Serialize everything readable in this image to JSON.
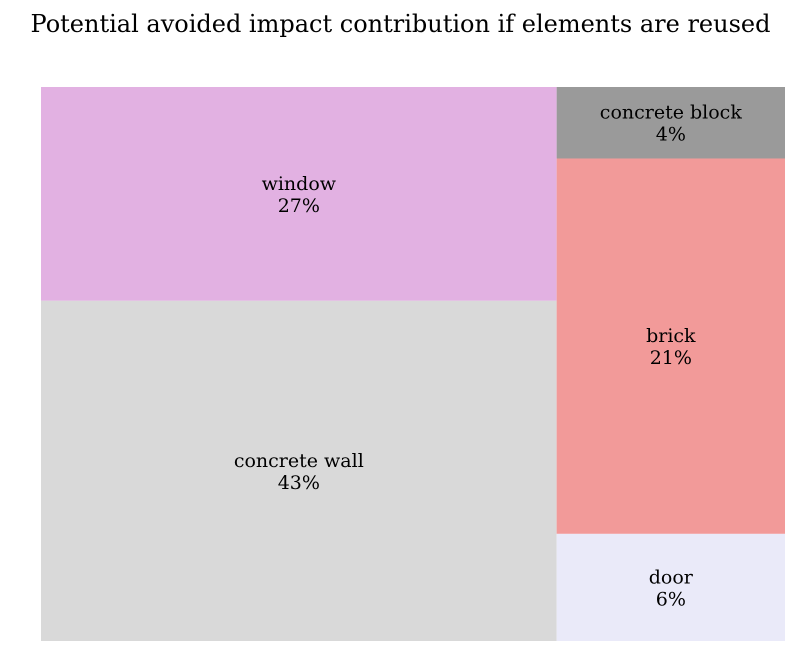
{
  "chart_data": {
    "type": "treemap",
    "title": "Potential avoided impact contribution if elements are reused",
    "items": [
      {
        "label": "concrete wall",
        "value": 43,
        "value_label": "43%",
        "color": "#d9d9d9"
      },
      {
        "label": "window",
        "value": 27,
        "value_label": "27%",
        "color": "#e2b1e2"
      },
      {
        "label": "brick",
        "value": 21,
        "value_label": "21%",
        "color": "#f29a99"
      },
      {
        "label": "door",
        "value": 6,
        "value_label": "6%",
        "color": "#eaeaf9"
      },
      {
        "label": "concrete block",
        "value": 4,
        "value_label": "4%",
        "color": "#9a9a9a"
      }
    ]
  }
}
